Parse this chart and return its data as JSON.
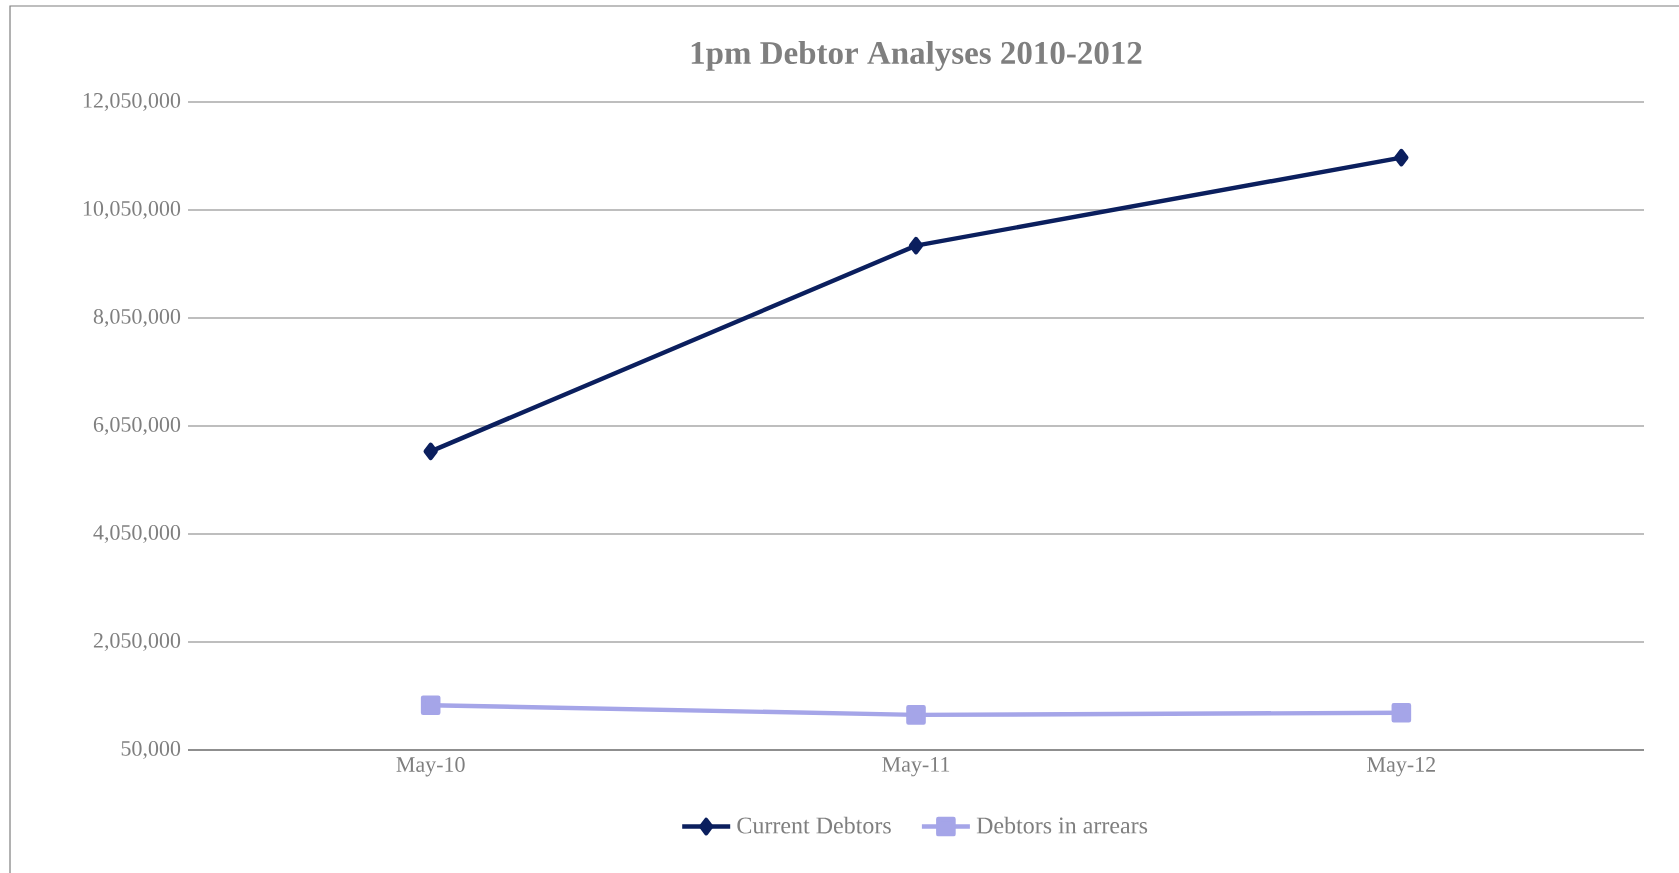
{
  "chart_data": {
    "type": "line",
    "title": "1pm Debtor Analyses 2010-2012",
    "categories": [
      "May-10",
      "May-11",
      "May-12"
    ],
    "series": [
      {
        "name": "Current Debtors",
        "color": "#0b1f5e",
        "marker": "diamond",
        "values": [
          5580000,
          9390000,
          11020000
        ]
      },
      {
        "name": "Debtors in arrears",
        "color": "#a5a5e8",
        "marker": "square",
        "values": [
          880000,
          700000,
          740000
        ]
      }
    ],
    "ylim": [
      50000,
      12050000
    ],
    "yticks": [
      {
        "value": 50000,
        "label": "50,000"
      },
      {
        "value": 2050000,
        "label": "2,050,000"
      },
      {
        "value": 4050000,
        "label": "4,050,000"
      },
      {
        "value": 6050000,
        "label": "6,050,000"
      },
      {
        "value": 8050000,
        "label": "8,050,000"
      },
      {
        "value": 10050000,
        "label": "10,050,000"
      },
      {
        "value": 12050000,
        "label": "12,050,000"
      }
    ],
    "grid": "y",
    "legend": "bottom",
    "line_style": "solid"
  }
}
